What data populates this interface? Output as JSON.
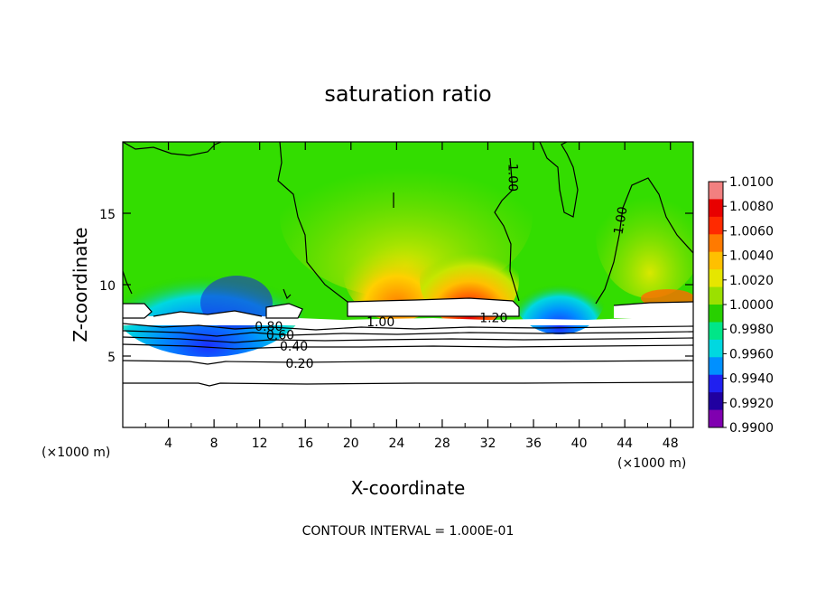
{
  "chart_data": {
    "type": "heatmap",
    "title": "saturation ratio",
    "xlabel": "X-coordinate",
    "ylabel": "Z-coordinate",
    "x_unit": "(×1000 m)",
    "x_unit_right": "(×1000 m)",
    "footer": "CONTOUR INTERVAL = 1.000E-01",
    "xlim": [
      0,
      50
    ],
    "ylim": [
      0,
      20
    ],
    "x_ticks": [
      4,
      8,
      12,
      16,
      20,
      24,
      28,
      32,
      36,
      40,
      44,
      48
    ],
    "y_ticks": [
      5,
      10,
      15
    ],
    "colorbar": {
      "min": 0.99,
      "max": 1.01,
      "labels": [
        "1.0100",
        "1.0080",
        "1.0060",
        "1.0040",
        "1.0020",
        "1.0000",
        "0.9980",
        "0.9960",
        "0.9940",
        "0.9920",
        "0.9900"
      ],
      "colors": [
        "#f28080",
        "#e80000",
        "#ff2a00",
        "#ff7a00",
        "#ffc000",
        "#e6e600",
        "#9be000",
        "#28d000",
        "#00e688",
        "#00d8e0",
        "#0090ff",
        "#2020f0",
        "#2000a0",
        "#8000b0"
      ]
    },
    "contour_labels": [
      {
        "text": "0.80",
        "x": 12.8,
        "z": 7.1
      },
      {
        "text": "0.60",
        "x": 13.8,
        "z": 6.5
      },
      {
        "text": "0.40",
        "x": 15.0,
        "z": 5.7
      },
      {
        "text": "0.20",
        "x": 15.5,
        "z": 4.5
      },
      {
        "text": "1.00",
        "x": 22.6,
        "z": 7.4
      },
      {
        "text": "1.20",
        "x": 32.5,
        "z": 7.7
      },
      {
        "text": "1.00",
        "x": 34.2,
        "z": 17.5
      },
      {
        "text": "1.00",
        "x": 43.6,
        "z": 14.5
      }
    ],
    "subsaturated_contours": [
      0.2,
      0.4,
      0.6,
      0.8
    ],
    "cloud_top_z": 9.0,
    "cloud_base_z": 7.8,
    "features": [
      {
        "kind": "dry-pocket",
        "x_range": [
          2,
          12
        ],
        "z_range": [
          7.8,
          12
        ],
        "ratio": 0.992
      },
      {
        "kind": "supersaturated",
        "x_range": [
          20,
          36
        ],
        "z_range": [
          8.5,
          14
        ],
        "ratio": 1.006
      },
      {
        "kind": "dry-pocket",
        "x_range": [
          36,
          41
        ],
        "z_range": [
          7.8,
          11
        ],
        "ratio": 0.994
      }
    ]
  }
}
